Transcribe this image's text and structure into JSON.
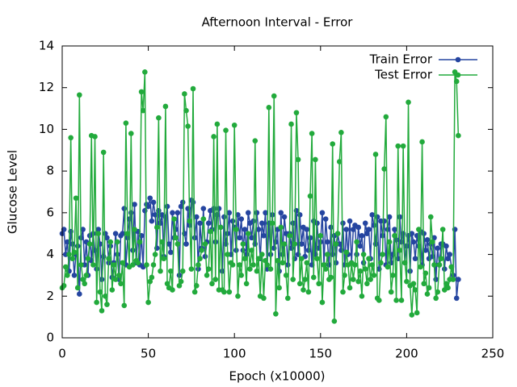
{
  "chart_data": {
    "type": "line",
    "title": "Afternoon Interval - Error",
    "xlabel": "Epoch (x10000)",
    "ylabel": "Glucose Level",
    "xlim": [
      0,
      250
    ],
    "xticks": [
      0,
      50,
      100,
      150,
      200,
      250
    ],
    "ylim": [
      0,
      14
    ],
    "yticks": [
      0,
      2,
      4,
      6,
      8,
      10,
      12,
      14
    ],
    "legend": "upper right",
    "x": [
      0,
      1,
      2,
      3,
      4,
      5,
      6,
      7,
      8,
      9,
      10,
      11,
      12,
      13,
      14,
      15,
      16,
      17,
      18,
      19,
      20,
      21,
      22,
      23,
      24,
      25,
      26,
      27,
      28,
      29,
      30,
      31,
      32,
      33,
      34,
      35,
      36,
      37,
      38,
      39,
      40,
      41,
      42,
      43,
      44,
      45,
      46,
      47,
      48,
      49,
      50,
      51,
      52,
      53,
      54,
      55,
      56,
      57,
      58,
      59,
      60,
      61,
      62,
      63,
      64,
      65,
      66,
      67,
      68,
      69,
      70,
      71,
      72,
      73,
      74,
      75,
      76,
      77,
      78,
      79,
      80,
      81,
      82,
      83,
      84,
      85,
      86,
      87,
      88,
      89,
      90,
      91,
      92,
      93,
      94,
      95,
      96,
      97,
      98,
      99,
      100,
      101,
      102,
      103,
      104,
      105,
      106,
      107,
      108,
      109,
      110,
      111,
      112,
      113,
      114,
      115,
      116,
      117,
      118,
      119,
      120,
      121,
      122,
      123,
      124,
      125,
      126,
      127,
      128,
      129,
      130,
      131,
      132,
      133,
      134,
      135,
      136,
      137,
      138,
      139,
      140,
      141,
      142,
      143,
      144,
      145,
      146,
      147,
      148,
      149,
      150,
      151,
      152,
      153,
      154,
      155,
      156,
      157,
      158,
      159,
      160,
      161,
      162,
      163,
      164,
      165,
      166,
      167,
      168,
      169,
      170,
      171,
      172,
      173,
      174,
      175,
      176,
      177,
      178,
      179,
      180,
      181,
      182,
      183,
      184,
      185,
      186,
      187,
      188,
      189,
      190,
      191,
      192,
      193,
      194,
      195,
      196,
      197,
      198,
      199,
      200,
      201,
      202,
      203,
      204,
      205,
      206,
      207,
      208,
      209,
      210,
      211,
      212,
      213,
      214,
      215,
      216,
      217,
      218,
      219,
      220,
      221,
      222,
      223,
      224,
      225,
      226,
      227,
      228,
      229,
      230
    ],
    "series": [
      {
        "name": "Train Error",
        "color": "#2545a0",
        "values": [
          5.0,
          5.2,
          4.0,
          4.6,
          3.2,
          5.1,
          4.5,
          3.0,
          4.0,
          4.4,
          2.1,
          4.8,
          5.2,
          3.5,
          4.6,
          3.0,
          4.9,
          3.7,
          5.0,
          4.2,
          3.3,
          5.2,
          4.5,
          2.8,
          3.9,
          5.0,
          4.8,
          3.6,
          4.4,
          2.9,
          3.6,
          5.0,
          4.0,
          2.8,
          4.9,
          5.0,
          6.2,
          3.5,
          4.8,
          5.7,
          6.0,
          4.2,
          6.4,
          3.6,
          5.1,
          3.5,
          4.9,
          3.4,
          6.1,
          6.4,
          6.3,
          6.7,
          5.6,
          6.5,
          5.9,
          4.3,
          6.1,
          5.5,
          5.9,
          3.9,
          5.8,
          6.3,
          4.5,
          4.1,
          6.0,
          4.8,
          5.2,
          6.0,
          3.0,
          6.3,
          6.5,
          5.0,
          4.5,
          6.2,
          5.4,
          6.6,
          6.5,
          4.8,
          5.8,
          3.3,
          5.5,
          4.3,
          6.2,
          3.9,
          4.6,
          5.5,
          6.1,
          5.2,
          6.2,
          4.6,
          5.9,
          6.2,
          5.3,
          3.2,
          5.8,
          4.5,
          5.0,
          6.0,
          4.0,
          5.6,
          5.3,
          4.2,
          5.9,
          4.8,
          5.7,
          4.2,
          5.2,
          4.0,
          6.0,
          5.5,
          4.8,
          5.6,
          4.5,
          6.0,
          5.2,
          3.8,
          5.5,
          4.9,
          6.0,
          3.3,
          5.5,
          4.0,
          5.9,
          4.3,
          4.6,
          5.2,
          3.2,
          6.0,
          4.0,
          5.8,
          5.0,
          3.5,
          5.0,
          4.3,
          5.5,
          3.8,
          6.1,
          4.0,
          5.9,
          4.5,
          5.3,
          3.9,
          5.2,
          4.2,
          4.8,
          3.5,
          5.6,
          4.0,
          5.5,
          4.3,
          4.6,
          6.0,
          3.5,
          5.7,
          4.6,
          3.5,
          5.3,
          4.0,
          4.9,
          3.6,
          5.0,
          4.5,
          4.2,
          5.5,
          3.5,
          5.2,
          4.0,
          5.6,
          3.6,
          5.2,
          5.4,
          4.0,
          5.3,
          4.4,
          4.9,
          3.6,
          5.5,
          5.0,
          5.2,
          3.8,
          5.9,
          5.4,
          4.5,
          5.8,
          3.3,
          5.6,
          4.9,
          5.6,
          3.5,
          5.2,
          5.8,
          3.6,
          4.0,
          5.2,
          4.7,
          3.8,
          5.8,
          4.6,
          5.0,
          3.6,
          4.4,
          4.9,
          3.2,
          5.0,
          4.6,
          3.8,
          4.9,
          4.4,
          5.1,
          3.5,
          5.0,
          4.2,
          4.7,
          3.8,
          4.5,
          3.9,
          4.8,
          2.8,
          4.3,
          3.5,
          4.5,
          4.5,
          3.3,
          4.4,
          3.8,
          4.0,
          3.4,
          3.0,
          5.2,
          1.9,
          2.8
        ]
      },
      {
        "name": "Test Error",
        "color": "#22aa3c",
        "values": [
          2.4,
          2.5,
          3.4,
          3.0,
          4.0,
          9.6,
          3.8,
          4.1,
          6.7,
          2.4,
          11.65,
          3.5,
          2.8,
          2.6,
          3.0,
          3.8,
          4.5,
          9.7,
          3.5,
          9.65,
          1.7,
          5.0,
          2.2,
          1.3,
          8.9,
          2.0,
          1.6,
          3.8,
          4.6,
          2.3,
          3.5,
          2.8,
          4.6,
          3.0,
          2.6,
          3.6,
          1.55,
          10.3,
          5.0,
          3.4,
          9.8,
          3.5,
          5.2,
          3.7,
          3.6,
          4.6,
          11.8,
          10.9,
          12.75,
          3.5,
          1.7,
          2.7,
          2.9,
          3.5,
          4.0,
          5.3,
          10.55,
          3.2,
          4.6,
          3.8,
          11.1,
          2.6,
          2.4,
          3.2,
          2.3,
          5.7,
          4.8,
          4.5,
          2.5,
          2.7,
          3.2,
          11.7,
          10.9,
          10.15,
          5.6,
          3.3,
          11.95,
          2.2,
          2.5,
          3.5,
          3.8,
          4.2,
          5.7,
          4.5,
          3.0,
          3.3,
          5.1,
          2.6,
          9.65,
          2.8,
          10.25,
          2.3,
          5.3,
          2.3,
          2.2,
          9.95,
          4.0,
          2.2,
          3.6,
          3.5,
          10.2,
          5.2,
          2.0,
          3.5,
          3.0,
          4.5,
          3.8,
          2.6,
          5.0,
          3.3,
          4.2,
          3.5,
          9.45,
          3.2,
          3.8,
          2.0,
          4.0,
          1.9,
          3.7,
          3.5,
          11.05,
          3.3,
          5.5,
          11.6,
          1.15,
          3.7,
          2.4,
          5.3,
          3.6,
          4.5,
          3.0,
          1.9,
          4.9,
          10.25,
          2.8,
          4.5,
          10.8,
          8.55,
          2.6,
          3.8,
          2.3,
          2.8,
          3.6,
          2.2,
          6.8,
          9.8,
          2.9,
          8.55,
          3.8,
          2.6,
          4.9,
          1.7,
          3.5,
          3.3,
          4.0,
          2.8,
          2.9,
          9.3,
          0.8,
          4.5,
          5.0,
          8.45,
          9.85,
          2.2,
          3.0,
          4.1,
          3.5,
          2.4,
          3.6,
          2.8,
          3.5,
          4.6,
          2.7,
          3.2,
          2.0,
          4.0,
          3.3,
          2.6,
          3.8,
          2.8,
          3.5,
          3.0,
          8.8,
          1.9,
          1.8,
          3.6,
          4.0,
          8.1,
          10.6,
          3.4,
          4.6,
          2.2,
          3.0,
          4.9,
          1.8,
          9.2,
          4.2,
          1.8,
          9.2,
          3.6,
          2.7,
          11.3,
          2.5,
          1.1,
          2.6,
          2.3,
          1.2,
          5.2,
          3.4,
          9.4,
          2.6,
          3.1,
          2.1,
          2.4,
          5.8,
          4.6,
          3.5,
          1.9,
          2.2,
          3.5,
          3.8,
          5.2,
          2.3,
          2.6,
          2.4,
          2.8,
          3.4,
          2.8,
          12.75,
          12.3,
          9.7
        ]
      }
    ]
  }
}
